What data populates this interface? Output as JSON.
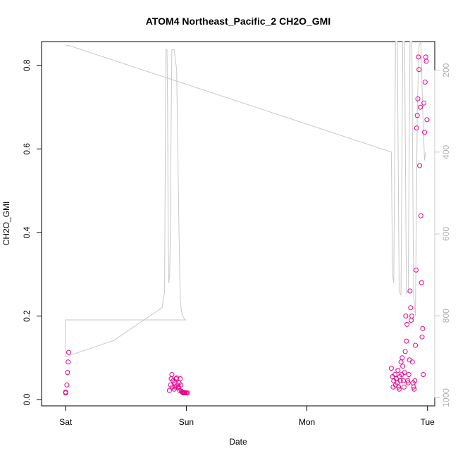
{
  "chart_data": {
    "type": "scatter",
    "title": "ATOM4 Northeast_Pacific_2 CH2O_GMI",
    "xlabel": "Date",
    "ylabel": "CH2O_GMI",
    "x_ticks": [
      {
        "label": "Sat",
        "value": 0
      },
      {
        "label": "Sun",
        "value": 1
      },
      {
        "label": "Mon",
        "value": 2
      },
      {
        "label": "Tue",
        "value": 3
      }
    ],
    "xlim": [
      -0.2,
      3.06
    ],
    "ylim": [
      -0.015,
      0.857
    ],
    "y_ticks": [
      0.0,
      0.2,
      0.4,
      0.6,
      0.8
    ],
    "y_tick_labels": [
      "0.0",
      "0.2",
      "0.4",
      "0.6",
      "0.8"
    ],
    "right_axis": {
      "ticks": [
        200,
        400,
        600,
        800,
        1000
      ],
      "tick_labels": [
        "200",
        "400",
        "600",
        "800",
        "1000"
      ],
      "lim": [
        1020,
        130
      ],
      "color": "#c8c8c8"
    },
    "series": [
      {
        "color": "#c8c8c8",
        "mark": "line",
        "axis": "right",
        "x": [
          -0.005,
          0.0,
          0.015,
          0.03,
          1.0,
          0.99,
          0.98,
          0.97,
          0.96,
          0.95,
          0.94,
          0.93,
          0.92,
          0.9,
          0.88,
          0.875,
          0.868,
          0.862,
          0.855,
          0.85,
          0.845,
          0.84,
          0.832,
          0.826,
          0.82,
          0.82,
          0.82,
          0.82,
          0.8,
          0.6,
          0.4,
          0.2,
          0.0,
          -0.005
        ],
        "y": [
          810,
          810,
          810,
          810,
          810,
          810,
          805,
          800,
          790,
          760,
          600,
          400,
          200,
          150,
          150,
          300,
          600,
          700,
          720,
          600,
          300,
          150,
          150,
          400,
          740,
          740,
          740,
          740,
          780,
          820,
          860,
          880,
          900,
          810
        ]
      },
      {
        "color": "#c8c8c8",
        "mark": "line",
        "axis": "right",
        "x": [
          0.0,
          0.03,
          2.7,
          2.71,
          2.72,
          2.735,
          2.75,
          2.765,
          2.78,
          2.795,
          2.81,
          2.825,
          2.84,
          2.855,
          2.87,
          2.885,
          2.9,
          2.915,
          2.93,
          2.945,
          2.96,
          2.975,
          2.985
        ],
        "y": [
          140,
          140,
          400,
          700,
          720,
          130,
          130,
          740,
          750,
          130,
          130,
          745,
          740,
          130,
          130,
          750,
          800,
          300,
          140,
          130,
          300,
          420,
          400
        ]
      },
      {
        "color": "#e8008a",
        "mark": "circle",
        "axis": "left",
        "x": [
          0.0,
          0.01,
          0.0,
          0.015,
          0.02,
          0.025,
          0.86,
          0.87,
          0.875,
          0.88,
          0.885,
          0.89,
          0.9,
          0.905,
          0.91,
          0.915,
          0.92,
          0.925,
          0.93,
          0.935,
          0.94,
          0.945,
          0.95,
          0.955,
          0.96,
          0.965,
          0.97,
          0.975,
          0.98,
          0.985,
          0.99,
          1.0,
          1.01,
          2.7,
          2.71,
          2.715,
          2.72,
          2.73,
          2.735,
          2.74,
          2.75,
          2.755,
          2.76,
          2.765,
          2.77,
          2.775,
          2.78,
          2.785,
          2.79,
          2.795,
          2.8,
          2.805,
          2.81,
          2.815,
          2.82,
          2.825,
          2.83,
          2.835,
          2.84,
          2.845,
          2.85,
          2.855,
          2.86,
          2.865,
          2.87,
          2.875,
          2.88,
          2.885,
          2.89,
          2.895,
          2.9,
          2.905,
          2.91,
          2.915,
          2.92,
          2.925,
          2.93,
          2.935,
          2.94,
          2.945,
          2.95,
          2.955,
          2.96,
          2.965,
          2.97,
          2.975,
          2.98,
          2.985,
          2.99,
          2.995
        ],
        "y": [
          0.018,
          0.035,
          0.016,
          0.065,
          0.09,
          0.113,
          0.022,
          0.035,
          0.05,
          0.06,
          0.03,
          0.045,
          0.025,
          0.04,
          0.03,
          0.05,
          0.052,
          0.035,
          0.028,
          0.03,
          0.04,
          0.022,
          0.05,
          0.035,
          0.02,
          0.018,
          0.017,
          0.016,
          0.016,
          0.017,
          0.016,
          0.016,
          0.016,
          0.075,
          0.055,
          0.03,
          0.045,
          0.06,
          0.035,
          0.05,
          0.04,
          0.07,
          0.03,
          0.025,
          0.055,
          0.045,
          0.09,
          0.06,
          0.1,
          0.08,
          0.045,
          0.03,
          0.065,
          0.115,
          0.2,
          0.14,
          0.18,
          0.045,
          0.04,
          0.06,
          0.095,
          0.26,
          0.22,
          0.19,
          0.2,
          0.09,
          0.04,
          0.03,
          0.025,
          0.045,
          0.13,
          0.31,
          0.65,
          0.68,
          0.72,
          0.82,
          0.79,
          0.56,
          0.7,
          0.44,
          0.28,
          0.15,
          0.17,
          0.06,
          0.71,
          0.64,
          0.76,
          0.82,
          0.81,
          0.67
        ]
      }
    ]
  }
}
